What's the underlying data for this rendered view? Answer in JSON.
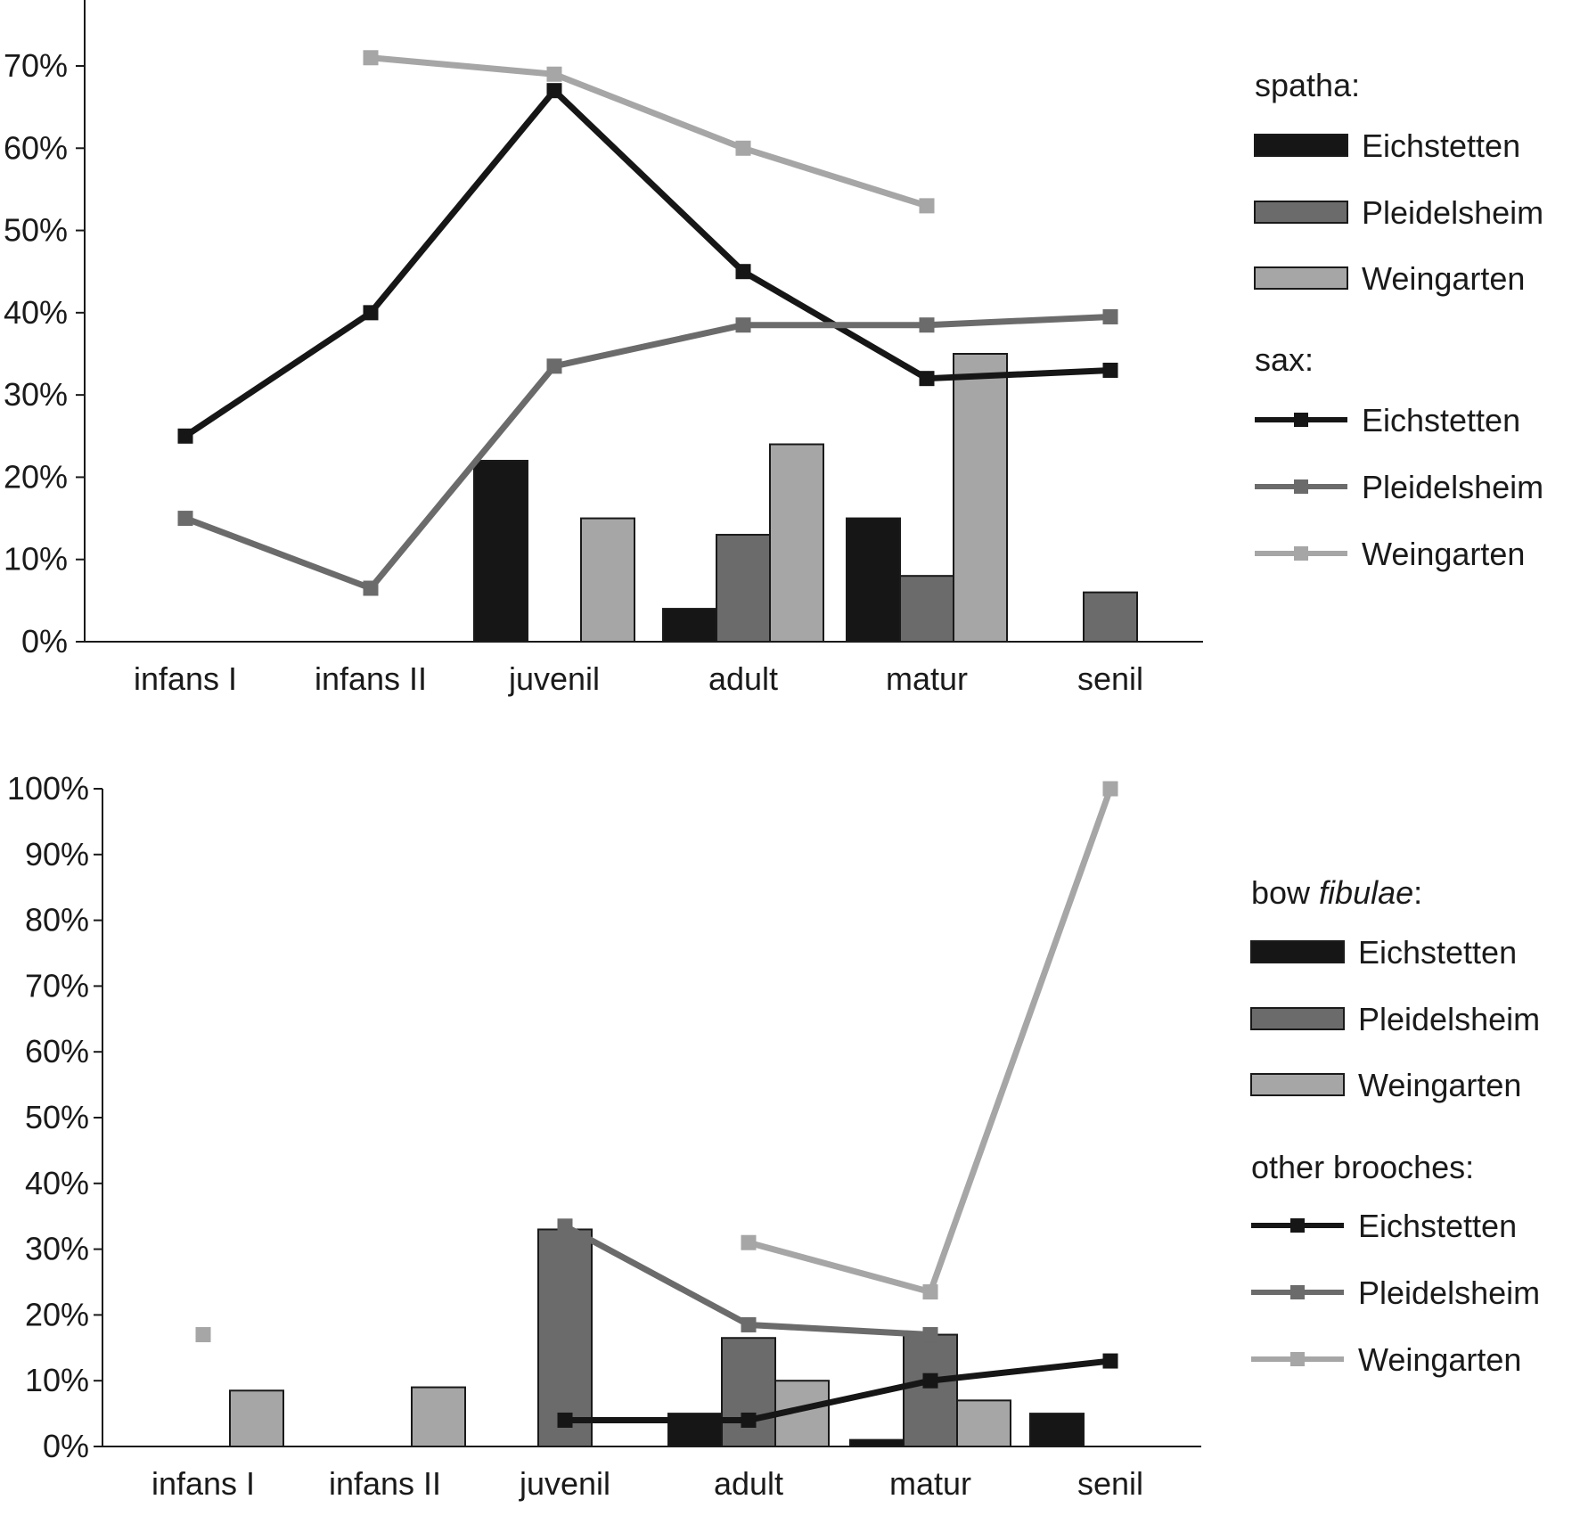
{
  "chart_data": [
    {
      "id": "top",
      "type": "bar+line",
      "title": "",
      "xlabel": "",
      "ylabel": "",
      "ylim": [
        0,
        0.78
      ],
      "y_ticks": [
        0,
        0.1,
        0.2,
        0.3,
        0.4,
        0.5,
        0.6,
        0.7
      ],
      "y_tick_labels": [
        "0%",
        "10%",
        "20%",
        "30%",
        "40%",
        "50%",
        "60%",
        "70%"
      ],
      "categories": [
        "infans I",
        "infans II",
        "juvenil",
        "adult",
        "matur",
        "senil"
      ],
      "legend_position": "right",
      "bar_group": {
        "heading": "spatha:",
        "series": [
          {
            "name": "Eichstetten",
            "color": "#161616",
            "values": [
              null,
              null,
              0.22,
              0.04,
              0.15,
              null
            ]
          },
          {
            "name": "Pleidelsheim",
            "color": "#6b6b6b",
            "values": [
              null,
              null,
              null,
              0.13,
              0.08,
              0.06
            ]
          },
          {
            "name": "Weingarten",
            "color": "#a6a6a6",
            "values": [
              null,
              null,
              0.15,
              0.24,
              0.35,
              null
            ]
          }
        ]
      },
      "line_group": {
        "heading": "sax:",
        "series": [
          {
            "name": "Eichstetten",
            "color": "#161616",
            "values": [
              0.25,
              0.4,
              0.67,
              0.45,
              0.32,
              0.33
            ]
          },
          {
            "name": "Pleidelsheim",
            "color": "#6b6b6b",
            "values": [
              0.15,
              0.065,
              0.335,
              0.385,
              0.385,
              0.395
            ]
          },
          {
            "name": "Weingarten",
            "color": "#a6a6a6",
            "values": [
              null,
              0.71,
              0.69,
              0.6,
              0.53,
              null
            ]
          }
        ]
      }
    },
    {
      "id": "bottom",
      "type": "bar+line",
      "title": "",
      "xlabel": "",
      "ylabel": "",
      "ylim": [
        0,
        1.0
      ],
      "y_ticks": [
        0,
        0.1,
        0.2,
        0.3,
        0.4,
        0.5,
        0.6,
        0.7,
        0.8,
        0.9,
        1.0
      ],
      "y_tick_labels": [
        "0%",
        "10%",
        "20%",
        "30%",
        "40%",
        "50%",
        "60%",
        "70%",
        "80%",
        "90%",
        "100%"
      ],
      "categories": [
        "infans I",
        "infans II",
        "juvenil",
        "adult",
        "matur",
        "senil"
      ],
      "legend_position": "right",
      "bar_group": {
        "heading": "bow ",
        "heading_italic": "fibulae",
        "heading_suffix": ":",
        "series": [
          {
            "name": "Eichstetten",
            "color": "#161616",
            "values": [
              null,
              null,
              null,
              0.05,
              0.01,
              0.05
            ]
          },
          {
            "name": "Pleidelsheim",
            "color": "#6b6b6b",
            "values": [
              null,
              null,
              0.33,
              0.165,
              0.17,
              null
            ]
          },
          {
            "name": "Weingarten",
            "color": "#a6a6a6",
            "values": [
              0.085,
              0.09,
              null,
              0.1,
              0.07,
              null
            ]
          }
        ]
      },
      "line_group": {
        "heading": "other brooches:",
        "series": [
          {
            "name": "Eichstetten",
            "color": "#161616",
            "values": [
              null,
              null,
              0.04,
              0.04,
              0.1,
              0.13
            ]
          },
          {
            "name": "Pleidelsheim",
            "color": "#6b6b6b",
            "values": [
              null,
              null,
              0.335,
              0.185,
              0.17,
              null
            ]
          },
          {
            "name": "Weingarten",
            "color": "#a6a6a6",
            "values": [
              0.17,
              null,
              null,
              0.31,
              0.235,
              1.0
            ]
          }
        ]
      }
    }
  ]
}
